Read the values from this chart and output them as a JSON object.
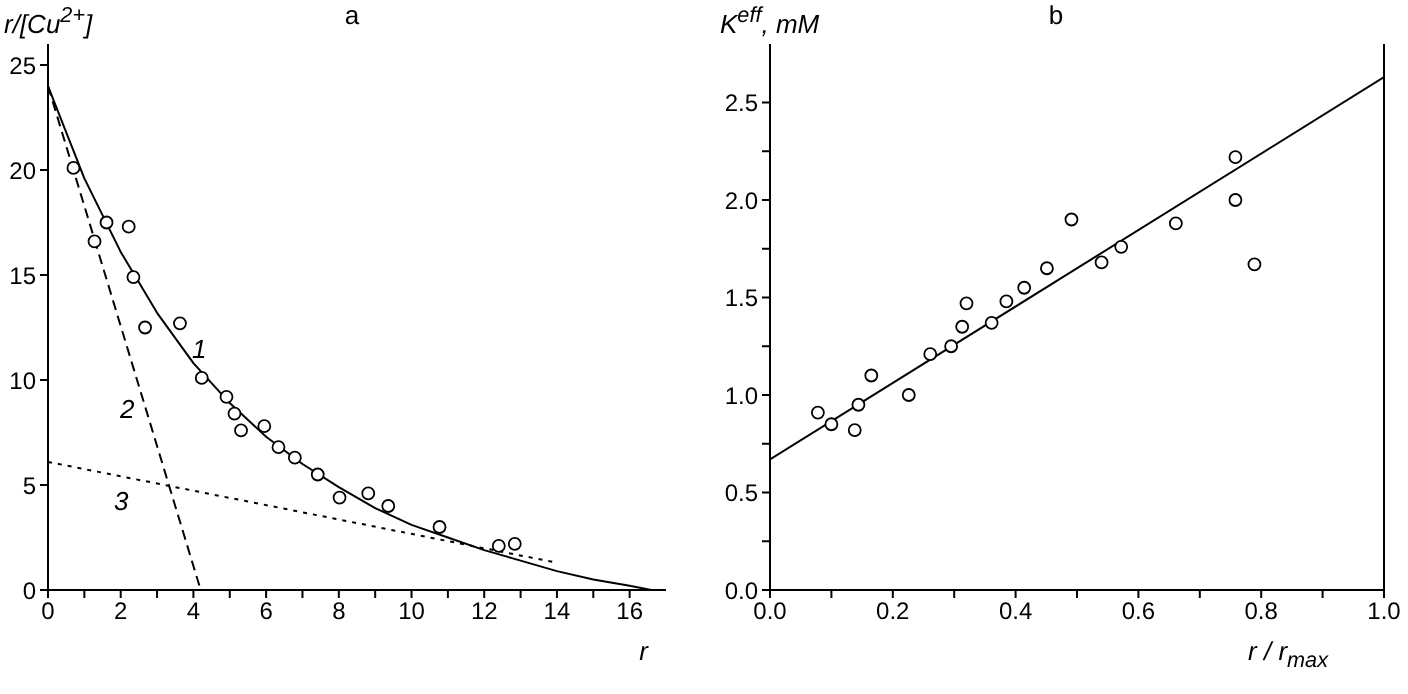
{
  "chart_data": [
    {
      "type": "scatter",
      "title": "a",
      "xlabel": "r",
      "ylabel": "r/[Cu$^{2+}$]",
      "xlim": [
        0,
        17
      ],
      "ylim": [
        0,
        26
      ],
      "xticks": [
        0,
        {
          "value": 1,
          "label": null
        },
        2,
        {
          "value": 3,
          "label": null
        },
        4,
        {
          "value": 5,
          "label": null
        },
        6,
        {
          "value": 7,
          "label": null
        },
        8,
        {
          "value": 9,
          "label": null
        },
        10,
        {
          "value": 11,
          "label": null
        },
        12,
        {
          "value": 13,
          "label": null
        },
        14,
        {
          "value": 15,
          "label": null
        },
        16
      ],
      "yticks": [
        0,
        5,
        10,
        15,
        20,
        25
      ],
      "grid": false,
      "series": [
        {
          "marker": "circle",
          "color": "#000000",
          "x": [
            0.7,
            1.28,
            1.61,
            2.22,
            2.35,
            2.67,
            3.63,
            4.23,
            4.91,
            5.13,
            5.31,
            5.95,
            6.34,
            6.79,
            7.42,
            8.02,
            8.81,
            9.36,
            10.77,
            12.4,
            12.84
          ],
          "values": [
            20.1,
            16.6,
            17.5,
            17.3,
            14.9,
            12.5,
            12.7,
            10.1,
            9.2,
            8.4,
            7.6,
            7.8,
            6.8,
            6.3,
            5.5,
            4.4,
            4.6,
            4.0,
            3.0,
            2.1,
            2.2
          ]
        },
        {
          "type": "line",
          "name": "1",
          "line_style": "solid",
          "color": "#000000",
          "x": [
            0,
            1,
            2,
            3,
            4,
            5,
            6,
            7,
            8,
            9,
            10,
            11,
            12,
            13,
            14,
            15,
            16,
            16.6
          ],
          "values": [
            24,
            19.6,
            16.1,
            13.2,
            10.8,
            8.9,
            7.3,
            6.0,
            4.9,
            3.9,
            3.1,
            2.5,
            1.9,
            1.4,
            0.9,
            0.5,
            0.2,
            0
          ]
        },
        {
          "type": "line",
          "name": "2",
          "line_style": "dashed",
          "color": "#000000",
          "x": [
            0,
            4.2
          ],
          "values": [
            24,
            0
          ]
        },
        {
          "type": "line",
          "name": "3",
          "line_style": "dotted",
          "color": "#000000",
          "x": [
            0,
            14
          ],
          "values": [
            6.1,
            1.3
          ]
        }
      ]
    },
    {
      "type": "scatter",
      "title": "b",
      "xlabel": "r / r$_{max}$",
      "ylabel": "K$^{eff}$, mM",
      "xlim": [
        0,
        1
      ],
      "ylim": [
        0,
        2.8
      ],
      "xticks": [
        {
          "value": 0,
          "label": "0.0"
        },
        {
          "value": 0.1,
          "label": null
        },
        {
          "value": 0.2,
          "label": "0.2"
        },
        {
          "value": 0.3,
          "label": null
        },
        {
          "value": 0.4,
          "label": "0.4"
        },
        {
          "value": 0.5,
          "label": null
        },
        {
          "value": 0.6,
          "label": "0.6"
        },
        {
          "value": 0.7,
          "label": null
        },
        {
          "value": 0.8,
          "label": "0.8"
        },
        {
          "value": 0.9,
          "label": null
        },
        {
          "value": 1,
          "label": "1.0"
        }
      ],
      "yticks": [
        {
          "value": 0,
          "label": "0.0"
        },
        {
          "value": 0.25,
          "label": null
        },
        {
          "value": 0.5,
          "label": "0.5"
        },
        {
          "value": 0.75,
          "label": null
        },
        {
          "value": 1,
          "label": "1.0"
        },
        {
          "value": 1.25,
          "label": null
        },
        {
          "value": 1.5,
          "label": "1.5"
        },
        {
          "value": 1.75,
          "label": null
        },
        {
          "value": 2,
          "label": "2.0"
        },
        {
          "value": 2.25,
          "label": null
        },
        {
          "value": 2.5,
          "label": "2.5"
        }
      ],
      "grid": false,
      "series": [
        {
          "marker": "circle",
          "color": "#000000",
          "x": [
            0.078,
            0.1,
            0.138,
            0.144,
            0.165,
            0.226,
            0.261,
            0.295,
            0.313,
            0.32,
            0.361,
            0.385,
            0.414,
            0.451,
            0.491,
            0.54,
            0.572,
            0.661,
            0.758,
            0.758,
            0.789
          ],
          "values": [
            0.91,
            0.85,
            0.82,
            0.95,
            1.1,
            1.0,
            1.21,
            1.25,
            1.35,
            1.47,
            1.37,
            1.48,
            1.55,
            1.65,
            1.9,
            1.68,
            1.76,
            1.88,
            2.22,
            2.0,
            1.67
          ]
        },
        {
          "type": "line",
          "line_style": "solid",
          "color": "#000000",
          "x": [
            0,
            1
          ],
          "values": [
            0.67,
            2.63
          ]
        }
      ]
    }
  ]
}
